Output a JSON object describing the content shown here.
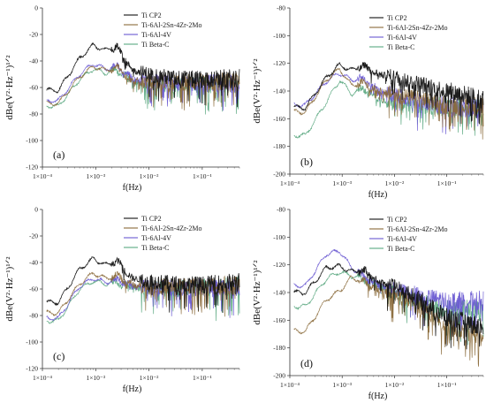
{
  "figure": {
    "series_colors": {
      "Ti CP2": "#111111",
      "Ti-6Al-2Sn-4Zr-2Mo": "#8a6a3a",
      "Ti-6Al-4V": "#6a5ad2",
      "Ti Beta-C": "#5aa880"
    },
    "x_tick_labels": [
      "1×10⁻⁴",
      "1×10⁻³",
      "1×10⁻²",
      "1×10⁻¹"
    ]
  },
  "chart_data": [
    {
      "type": "line",
      "panel_label": "(a)",
      "xlabel": "f(Hz)",
      "ylabel": "dBe(V²·Hz⁻¹)¹ᐟ²",
      "xscale": "log",
      "xlim": [
        0.0001,
        0.5
      ],
      "ylim": [
        -120,
        0
      ],
      "yticks": [
        0,
        -20,
        -40,
        -60,
        -80,
        -100,
        -120
      ],
      "legend_position": "top-right",
      "series": [
        {
          "name": "Ti CP2",
          "x": [
            0.0002,
            0.0005,
            0.0009,
            0.0015,
            0.0025,
            0.005,
            0.01,
            0.03,
            0.1,
            0.5
          ],
          "y": [
            -62,
            -38,
            -28,
            -32,
            -29,
            -47,
            -50,
            -53,
            -54,
            -53
          ]
        },
        {
          "name": "Ti-6Al-2Sn-4Zr-2Mo",
          "x": [
            0.0002,
            0.0005,
            0.0009,
            0.0015,
            0.0025,
            0.005,
            0.01,
            0.03,
            0.1,
            0.5
          ],
          "y": [
            -72,
            -52,
            -44,
            -47,
            -45,
            -55,
            -56,
            -56,
            -56,
            -55
          ]
        },
        {
          "name": "Ti-6Al-4V",
          "x": [
            0.0002,
            0.0005,
            0.0009,
            0.0015,
            0.0025,
            0.005,
            0.01,
            0.03,
            0.1,
            0.5
          ],
          "y": [
            -70,
            -50,
            -42,
            -46,
            -44,
            -54,
            -55,
            -57,
            -57,
            -57
          ]
        },
        {
          "name": "Ti Beta-C",
          "x": [
            0.0002,
            0.0005,
            0.0009,
            0.0015,
            0.0025,
            0.005,
            0.01,
            0.03,
            0.1,
            0.5
          ],
          "y": [
            -74,
            -54,
            -46,
            -49,
            -47,
            -56,
            -57,
            -58,
            -58,
            -57
          ]
        }
      ]
    },
    {
      "type": "line",
      "panel_label": "(b)",
      "xlabel": "f(Hz)",
      "ylabel": "dBe(V²·Hz⁻¹)¹ᐟ²",
      "xscale": "log",
      "xlim": [
        0.0001,
        0.5
      ],
      "ylim": [
        -200,
        -80
      ],
      "yticks": [
        -80,
        -100,
        -120,
        -140,
        -160,
        -180,
        -200
      ],
      "legend_position": "top-right",
      "series": [
        {
          "name": "Ti CP2",
          "x": [
            0.0002,
            0.0005,
            0.0009,
            0.0015,
            0.0025,
            0.005,
            0.01,
            0.03,
            0.1,
            0.5
          ],
          "y": [
            -152,
            -130,
            -121,
            -125,
            -122,
            -128,
            -130,
            -135,
            -140,
            -146
          ]
        },
        {
          "name": "Ti-6Al-2Sn-4Zr-2Mo",
          "x": [
            0.0002,
            0.0005,
            0.0009,
            0.0015,
            0.0025,
            0.005,
            0.01,
            0.03,
            0.1,
            0.5
          ],
          "y": [
            -155,
            -132,
            -124,
            -136,
            -134,
            -140,
            -142,
            -146,
            -150,
            -151
          ]
        },
        {
          "name": "Ti-6Al-4V",
          "x": [
            0.0002,
            0.0005,
            0.0009,
            0.0015,
            0.0025,
            0.005,
            0.01,
            0.03,
            0.1,
            0.5
          ],
          "y": [
            -150,
            -133,
            -127,
            -132,
            -131,
            -140,
            -143,
            -147,
            -151,
            -152
          ]
        },
        {
          "name": "Ti Beta-C",
          "x": [
            0.0002,
            0.0005,
            0.0009,
            0.0015,
            0.0025,
            0.005,
            0.01,
            0.03,
            0.1,
            0.5
          ],
          "y": [
            -172,
            -148,
            -132,
            -142,
            -138,
            -146,
            -148,
            -150,
            -152,
            -152
          ]
        }
      ]
    },
    {
      "type": "line",
      "panel_label": "(c)",
      "xlabel": "f(Hz)",
      "ylabel": "dBe(V²·Hz⁻¹)¹ᐟ²",
      "xscale": "log",
      "xlim": [
        0.0001,
        0.5
      ],
      "ylim": [
        -120,
        0
      ],
      "yticks": [
        0,
        -20,
        -40,
        -60,
        -80,
        -100,
        -120
      ],
      "legend_position": "top-right",
      "series": [
        {
          "name": "Ti CP2",
          "x": [
            0.0002,
            0.0005,
            0.0009,
            0.0015,
            0.0025,
            0.005,
            0.01,
            0.03,
            0.1,
            0.5
          ],
          "y": [
            -70,
            -45,
            -37,
            -42,
            -39,
            -52,
            -54,
            -56,
            -57,
            -55
          ]
        },
        {
          "name": "Ti-6Al-2Sn-4Zr-2Mo",
          "x": [
            0.0002,
            0.0005,
            0.0009,
            0.0015,
            0.0025,
            0.005,
            0.01,
            0.03,
            0.1,
            0.5
          ],
          "y": [
            -78,
            -56,
            -48,
            -52,
            -50,
            -57,
            -58,
            -58,
            -58,
            -57
          ]
        },
        {
          "name": "Ti-6Al-4V",
          "x": [
            0.0002,
            0.0005,
            0.0009,
            0.0015,
            0.0025,
            0.005,
            0.01,
            0.03,
            0.1,
            0.5
          ],
          "y": [
            -82,
            -58,
            -52,
            -55,
            -53,
            -58,
            -59,
            -59,
            -59,
            -58
          ]
        },
        {
          "name": "Ti Beta-C",
          "x": [
            0.0002,
            0.0005,
            0.0009,
            0.0015,
            0.0025,
            0.005,
            0.01,
            0.03,
            0.1,
            0.5
          ],
          "y": [
            -84,
            -60,
            -54,
            -56,
            -55,
            -59,
            -60,
            -60,
            -59,
            -58
          ]
        }
      ]
    },
    {
      "type": "line",
      "panel_label": "(d)",
      "xlabel": "f(Hz)",
      "ylabel": "dBe(V²·Hz⁻¹)¹ᐟ²",
      "xscale": "log",
      "xlim": [
        0.0001,
        0.5
      ],
      "ylim": [
        -200,
        -80
      ],
      "yticks": [
        -80,
        -100,
        -120,
        -140,
        -160,
        -180,
        -200
      ],
      "legend_position": "top-right",
      "series": [
        {
          "name": "Ti CP2",
          "x": [
            0.0002,
            0.0005,
            0.0009,
            0.0015,
            0.0025,
            0.005,
            0.01,
            0.03,
            0.1,
            0.5
          ],
          "y": [
            -140,
            -122,
            -121,
            -125,
            -124,
            -132,
            -136,
            -145,
            -158,
            -165
          ]
        },
        {
          "name": "Ti-6Al-2Sn-4Zr-2Mo",
          "x": [
            0.0002,
            0.0005,
            0.0009,
            0.0015,
            0.0025,
            0.005,
            0.01,
            0.03,
            0.1,
            0.5
          ],
          "y": [
            -168,
            -145,
            -139,
            -129,
            -132,
            -138,
            -142,
            -150,
            -165,
            -172
          ]
        },
        {
          "name": "Ti-6Al-4V",
          "x": [
            0.0002,
            0.0005,
            0.0009,
            0.0015,
            0.0025,
            0.005,
            0.01,
            0.03,
            0.1,
            0.5
          ],
          "y": [
            -135,
            -112,
            -110,
            -122,
            -128,
            -134,
            -138,
            -142,
            -146,
            -146
          ]
        },
        {
          "name": "Ti Beta-C",
          "x": [
            0.0002,
            0.0005,
            0.0009,
            0.0015,
            0.0025,
            0.005,
            0.01,
            0.03,
            0.1,
            0.5
          ],
          "y": [
            -150,
            -130,
            -125,
            -128,
            -130,
            -136,
            -140,
            -146,
            -152,
            -152
          ]
        }
      ]
    }
  ]
}
